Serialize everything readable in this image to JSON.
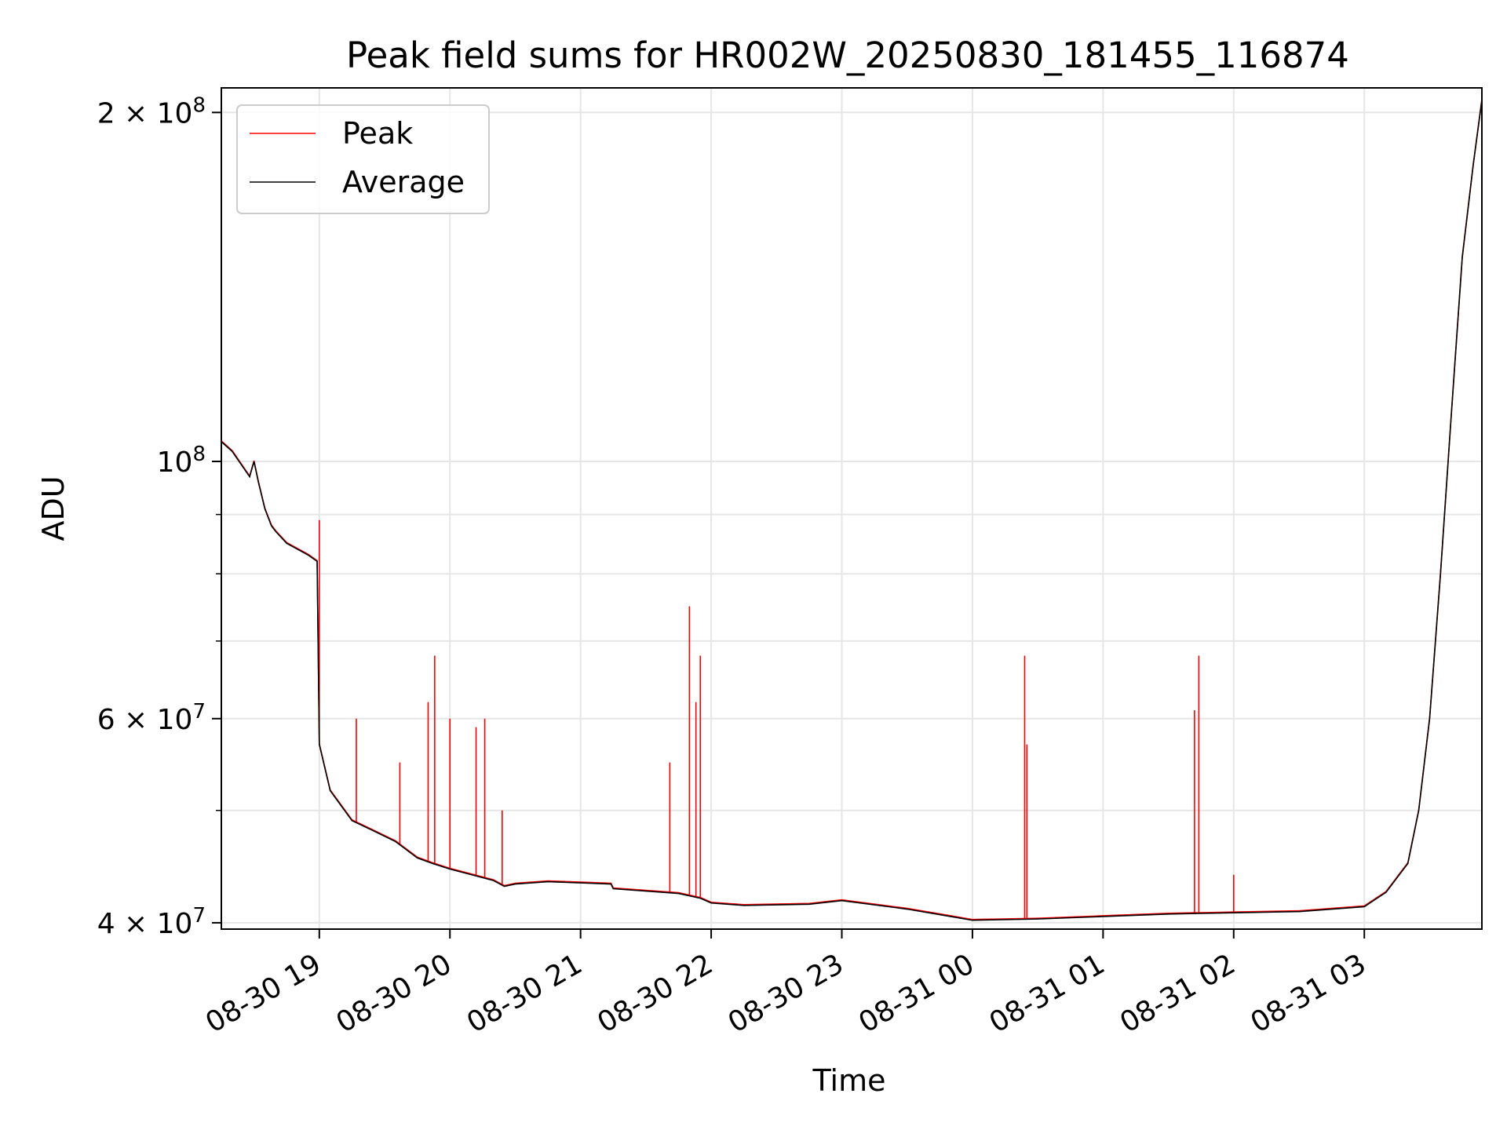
{
  "chart_data": {
    "type": "line",
    "title": "Peak field sums for HR002W_20250830_181455_116874",
    "xlabel": "Time",
    "ylabel": "ADU",
    "y_scale": "log",
    "grid": true,
    "legend_position": "top-left",
    "xlim": [
      "2025-08-30 18:15",
      "2025-08-31 03:54"
    ],
    "ylim": [
      39500000,
      210000000
    ],
    "x_ticks": [
      "08-30 19",
      "08-30 20",
      "08-30 21",
      "08-30 22",
      "08-30 23",
      "08-31 00",
      "08-31 01",
      "08-31 02",
      "08-31 03"
    ],
    "y_ticks": [
      {
        "value": 200000000,
        "base": "2 × 10",
        "exp": "8"
      },
      {
        "value": 100000000,
        "base": "10",
        "exp": "8"
      },
      {
        "value": 60000000,
        "base": "6 × 10",
        "exp": "7"
      },
      {
        "value": 40000000,
        "base": "4 × 10",
        "exp": "7"
      }
    ],
    "y_minor_ticks": [
      50000000,
      70000000,
      80000000,
      90000000
    ],
    "series": [
      {
        "name": "Average",
        "color": "#000000",
        "x": [
          "2025-08-30 18:15",
          "2025-08-30 18:20",
          "2025-08-30 18:28",
          "2025-08-30 18:30",
          "2025-08-30 18:32",
          "2025-08-30 18:35",
          "2025-08-30 18:38",
          "2025-08-30 18:40",
          "2025-08-30 18:45",
          "2025-08-30 18:50",
          "2025-08-30 18:55",
          "2025-08-30 18:59",
          "2025-08-30 19:00",
          "2025-08-30 19:05",
          "2025-08-30 19:15",
          "2025-08-30 19:25",
          "2025-08-30 19:35",
          "2025-08-30 19:45",
          "2025-08-30 19:52",
          "2025-08-30 20:00",
          "2025-08-30 20:10",
          "2025-08-30 20:20",
          "2025-08-30 20:25",
          "2025-08-30 20:30",
          "2025-08-30 20:45",
          "2025-08-30 21:00",
          "2025-08-30 21:14",
          "2025-08-30 21:15",
          "2025-08-30 21:45",
          "2025-08-30 21:55",
          "2025-08-30 22:00",
          "2025-08-30 22:15",
          "2025-08-30 22:45",
          "2025-08-30 23:00",
          "2025-08-30 23:30",
          "2025-08-30 23:50",
          "2025-08-31 00:00",
          "2025-08-31 00:30",
          "2025-08-31 01:00",
          "2025-08-31 01:30",
          "2025-08-31 02:00",
          "2025-08-31 02:30",
          "2025-08-31 03:00",
          "2025-08-31 03:10",
          "2025-08-31 03:20",
          "2025-08-31 03:25",
          "2025-08-31 03:30",
          "2025-08-31 03:35",
          "2025-08-31 03:40",
          "2025-08-31 03:45",
          "2025-08-31 03:50",
          "2025-08-31 03:54"
        ],
        "y": [
          104000000,
          102000000,
          97000000,
          100000000,
          96000000,
          91000000,
          88000000,
          87000000,
          85000000,
          84000000,
          83000000,
          82000000,
          57000000,
          52000000,
          49000000,
          48000000,
          47000000,
          45500000,
          45000000,
          44500000,
          44000000,
          43500000,
          43000000,
          43200000,
          43400000,
          43300000,
          43200000,
          42800000,
          42400000,
          42000000,
          41600000,
          41400000,
          41500000,
          41800000,
          41100000,
          40500000,
          40200000,
          40300000,
          40500000,
          40700000,
          40800000,
          40900000,
          41300000,
          42500000,
          45000000,
          50000000,
          60000000,
          80000000,
          110000000,
          150000000,
          180000000,
          205000000
        ]
      },
      {
        "name": "Peak",
        "color": "#ff0000",
        "spikes": [
          {
            "x": "2025-08-30 19:00",
            "y": 89000000
          },
          {
            "x": "2025-08-30 19:17",
            "y": 60000000
          },
          {
            "x": "2025-08-30 19:37",
            "y": 55000000
          },
          {
            "x": "2025-08-30 19:50",
            "y": 62000000
          },
          {
            "x": "2025-08-30 19:53",
            "y": 68000000
          },
          {
            "x": "2025-08-30 20:00",
            "y": 60000000
          },
          {
            "x": "2025-08-30 20:12",
            "y": 59000000
          },
          {
            "x": "2025-08-30 20:16",
            "y": 60000000
          },
          {
            "x": "2025-08-30 20:24",
            "y": 50000000
          },
          {
            "x": "2025-08-30 21:41",
            "y": 55000000
          },
          {
            "x": "2025-08-30 21:50",
            "y": 75000000
          },
          {
            "x": "2025-08-30 21:53",
            "y": 62000000
          },
          {
            "x": "2025-08-30 21:55",
            "y": 68000000
          },
          {
            "x": "2025-08-31 00:24",
            "y": 68000000
          },
          {
            "x": "2025-08-31 00:25",
            "y": 57000000
          },
          {
            "x": "2025-08-31 01:42",
            "y": 61000000
          },
          {
            "x": "2025-08-31 01:44",
            "y": 68000000
          },
          {
            "x": "2025-08-31 02:00",
            "y": 44000000
          }
        ]
      }
    ]
  }
}
